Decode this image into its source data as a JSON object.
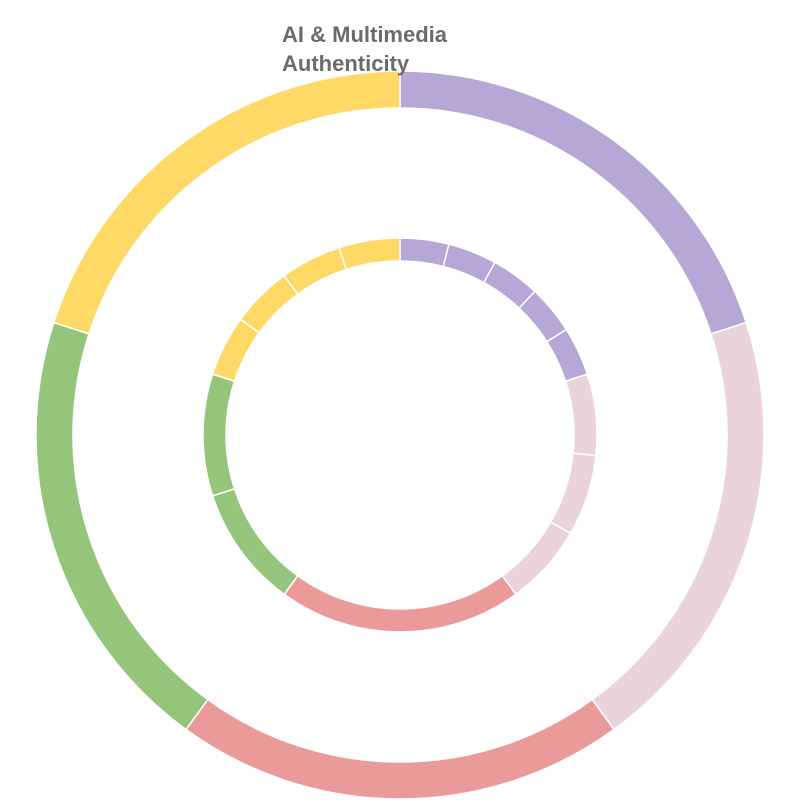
{
  "chart_data": {
    "type": "sunburst",
    "title": "AI & Multimedia Authenticity",
    "outer_ring": [
      {
        "name": "",
        "value": 1,
        "color": "#b5a8d6"
      },
      {
        "name": "",
        "value": 1,
        "color": "#ebd3dd"
      },
      {
        "name": "",
        "value": 1,
        "color": "#e99a99"
      },
      {
        "name": "",
        "value": 1,
        "color": "#94c57b"
      },
      {
        "name": "",
        "value": 1,
        "color": "#ffd966"
      }
    ],
    "inner_ring": [
      {
        "parent": 0,
        "name": "",
        "value": 1
      },
      {
        "parent": 0,
        "name": "",
        "value": 1
      },
      {
        "parent": 0,
        "name": "",
        "value": 1
      },
      {
        "parent": 0,
        "name": "",
        "value": 1
      },
      {
        "parent": 0,
        "name": "",
        "value": 1
      },
      {
        "parent": 1,
        "name": "",
        "value": 1
      },
      {
        "parent": 1,
        "name": "",
        "value": 1
      },
      {
        "parent": 1,
        "name": "",
        "value": 1
      },
      {
        "parent": 2,
        "name": "",
        "value": 1
      },
      {
        "parent": 3,
        "name": "",
        "value": 1
      },
      {
        "parent": 3,
        "name": "",
        "value": 1
      },
      {
        "parent": 4,
        "name": "",
        "value": 1
      },
      {
        "parent": 4,
        "name": "",
        "value": 1
      },
      {
        "parent": 4,
        "name": "",
        "value": 1
      },
      {
        "parent": 4,
        "name": "",
        "value": 1
      }
    ],
    "legend": "none"
  }
}
